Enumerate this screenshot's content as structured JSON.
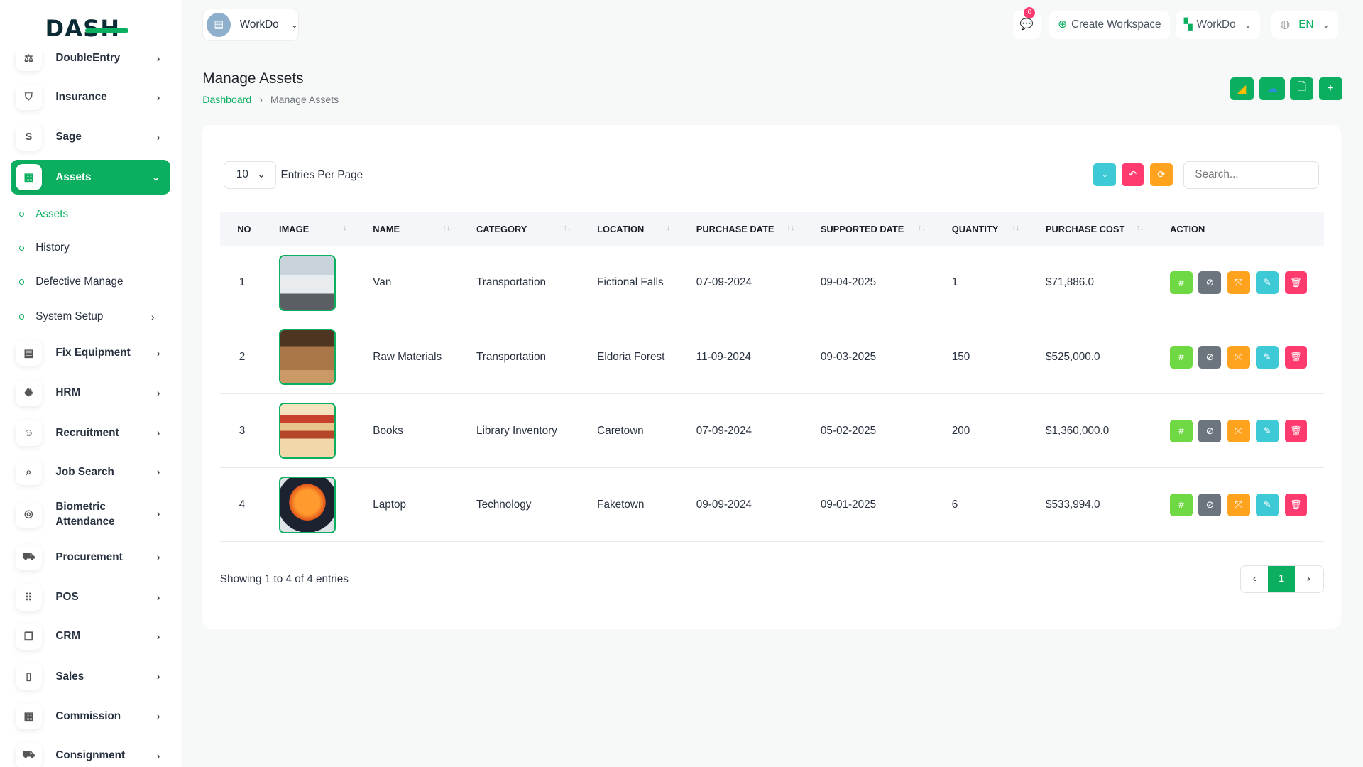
{
  "brand": {
    "logo_text": "DASH"
  },
  "sidebar": {
    "items": [
      {
        "label": "DoubleEntry",
        "icon": "scale-icon"
      },
      {
        "label": "Insurance",
        "icon": "shield-icon"
      },
      {
        "label": "Sage",
        "icon": "s-icon"
      },
      {
        "label": "Assets",
        "icon": "calculator-icon",
        "active": true
      },
      {
        "label": "Fix Equipment",
        "icon": "archive-icon"
      },
      {
        "label": "HRM",
        "icon": "users-circle-icon"
      },
      {
        "label": "Recruitment",
        "icon": "user-plus-icon"
      },
      {
        "label": "Job Search",
        "icon": "file-search-icon"
      },
      {
        "label": "Biometric Attendance",
        "icon": "fingerprint-icon"
      },
      {
        "label": "Procurement",
        "icon": "cart-icon"
      },
      {
        "label": "POS",
        "icon": "grid-icon"
      },
      {
        "label": "CRM",
        "icon": "layers-icon"
      },
      {
        "label": "Sales",
        "icon": "file-icon"
      },
      {
        "label": "Commission",
        "icon": "calculator-icon"
      },
      {
        "label": "Consignment",
        "icon": "truck-icon"
      }
    ],
    "sub_items": [
      {
        "label": "Assets",
        "current": true
      },
      {
        "label": "History"
      },
      {
        "label": "Defective Manage"
      },
      {
        "label": "System Setup"
      }
    ]
  },
  "topbar": {
    "workspace": "WorkDo",
    "notifications": "0",
    "create_workspace": "Create Workspace",
    "workdo_menu": "WorkDo",
    "language": "EN"
  },
  "page": {
    "title": "Manage Assets",
    "breadcrumb": [
      "Dashboard",
      "Manage Assets"
    ]
  },
  "list": {
    "entries_value": "10",
    "entries_label": "Entries Per Page",
    "search_placeholder": "Search...",
    "columns": [
      "NO",
      "IMAGE",
      "NAME",
      "CATEGORY",
      "LOCATION",
      "PURCHASE DATE",
      "SUPPORTED DATE",
      "QUANTITY",
      "PURCHASE COST",
      "ACTION"
    ],
    "rows": [
      {
        "no": "1",
        "name": "Van",
        "category": "Transportation",
        "location": "Fictional Falls",
        "purchase_date": "07-09-2024",
        "supported_date": "09-04-2025",
        "quantity": "1",
        "cost": "$71,886.0"
      },
      {
        "no": "2",
        "name": "Raw Materials",
        "category": "Transportation",
        "location": "Eldoria Forest",
        "purchase_date": "11-09-2024",
        "supported_date": "09-03-2025",
        "quantity": "150",
        "cost": "$525,000.0"
      },
      {
        "no": "3",
        "name": "Books",
        "category": "Library Inventory",
        "location": "Caretown",
        "purchase_date": "07-09-2024",
        "supported_date": "05-02-2025",
        "quantity": "200",
        "cost": "$1,360,000.0"
      },
      {
        "no": "4",
        "name": "Laptop",
        "category": "Technology",
        "location": "Faketown",
        "purchase_date": "09-09-2024",
        "supported_date": "09-01-2025",
        "quantity": "6",
        "cost": "$533,994.0"
      }
    ],
    "showing": "Showing 1 to 4 of 4 entries",
    "current_page": "1"
  },
  "colors": {
    "primary": "#0caf60",
    "green": "#6fd943",
    "gray": "#6c757d",
    "orange": "#ffa21d",
    "cyan": "#3ec9d6",
    "red": "#ff3a6e"
  }
}
